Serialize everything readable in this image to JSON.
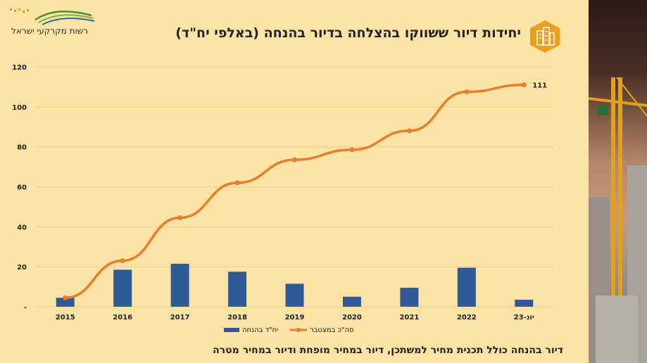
{
  "logo": {
    "text": "רשות מקרקעי ישראל"
  },
  "title": "יחידות דיור ששווקו בהצלחה בדיור בהנחה (באלפי יח\"ד)",
  "footer": "דיור בהנחה כולל תכנית מחיר למשתכן, דיור במחיר מופחת ודיור במחיר מטרה",
  "colors": {
    "bar": "#2e5a97",
    "line": "#e87e2c",
    "background": "#fbe3a5"
  },
  "icons": {
    "title": "buildings-icon",
    "logo": "logo-waves-icon"
  },
  "chart_data": {
    "type": "bar+line",
    "categories": [
      "2015",
      "2016",
      "2017",
      "2018",
      "2019",
      "2020",
      "2021",
      "2022",
      "23-יונ"
    ],
    "category_labels": [
      "2015",
      "2016",
      "2017",
      "2018",
      "2019",
      "2020",
      "2021",
      "2022",
      "יונ-23"
    ],
    "series": [
      {
        "name": "יח\"ד בהנחה",
        "type": "bar",
        "values": [
          4.5,
          18.5,
          21.5,
          17.5,
          11.5,
          5,
          9.5,
          19.5,
          3.5
        ]
      },
      {
        "name": "סה\"כ במצטבר",
        "type": "line",
        "values": [
          4.5,
          23,
          44.5,
          62,
          73.5,
          78.5,
          88,
          107.5,
          111
        ]
      }
    ],
    "data_labels": [
      {
        "series": 1,
        "index": 8,
        "text": "111"
      }
    ],
    "y_ticks": [
      "-",
      "20",
      "40",
      "60",
      "80",
      "100",
      "120"
    ],
    "ylim": [
      0,
      120
    ],
    "grid": true,
    "legend_position": "bottom-center"
  }
}
